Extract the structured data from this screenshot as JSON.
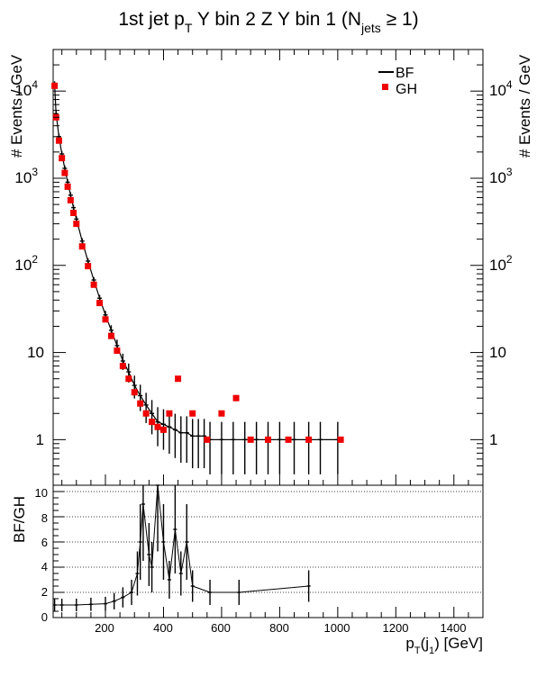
{
  "title": {
    "pre": "1st jet p",
    "sub_t": "T",
    "mid": " Y bin 2 Z Y bin 1 (N",
    "sub_jets": "jets",
    "post": " ≥ 1)"
  },
  "legend": {
    "items": [
      {
        "label": "BF",
        "color": "#000000",
        "marker": "line"
      },
      {
        "label": "GH",
        "color": "#ee0000",
        "marker": "square"
      }
    ]
  },
  "top_panel": {
    "ylabel": "# Events / GeV",
    "ylabel_right": "# Events / GeV",
    "ytick_labels": [
      "1",
      "10",
      "10",
      "10",
      "10"
    ],
    "ytick_exponents": [
      "",
      "",
      "2",
      "3",
      "4"
    ]
  },
  "bottom_panel": {
    "ylabel": "BF/GH",
    "ytick_labels": [
      "0",
      "2",
      "4",
      "6",
      "8",
      "10"
    ]
  },
  "xaxis": {
    "label_pre": "p",
    "label_sub_t": "T",
    "label_mid": "(j",
    "label_sub_1": "1",
    "label_post": ") [GeV]",
    "tick_labels": [
      "200",
      "400",
      "600",
      "800",
      "1000",
      "1200",
      "1400"
    ]
  },
  "chart_data": [
    {
      "type": "scatter",
      "title": "1st jet pT Y bin 2 Z Y bin 1 (Njets ≥ 1)",
      "xlabel": "pT(j1) [GeV]",
      "ylabel": "# Events / GeV",
      "yscale": "log",
      "xlim": [
        20,
        1500
      ],
      "ylim": [
        0.3,
        30000
      ],
      "legend_position": "top-right",
      "grid": false,
      "series": [
        {
          "name": "BF",
          "style": "histogram with error bars",
          "color": "#000000",
          "x": [
            25,
            30,
            40,
            50,
            60,
            70,
            80,
            90,
            100,
            120,
            140,
            160,
            180,
            200,
            220,
            240,
            260,
            280,
            300,
            320,
            340,
            360,
            380,
            400,
            420,
            440,
            460,
            480,
            500,
            520,
            540,
            560,
            600,
            640,
            680,
            720,
            760,
            800,
            850,
            900,
            940,
            1000
          ],
          "y": [
            12000,
            5500,
            3000,
            1900,
            1300,
            900,
            640,
            460,
            340,
            190,
            112,
            68,
            42,
            27,
            18,
            12,
            8,
            6,
            4.2,
            3.2,
            2.5,
            2,
            1.6,
            1.5,
            1.4,
            1.3,
            1.2,
            1.2,
            1.1,
            1.1,
            1.1,
            1,
            1,
            1,
            1,
            1,
            1,
            1,
            1,
            1,
            1,
            1
          ]
        },
        {
          "name": "GH",
          "style": "markers",
          "color": "#ee0000",
          "x": [
            25,
            30,
            40,
            50,
            60,
            70,
            80,
            90,
            100,
            120,
            140,
            160,
            180,
            200,
            220,
            240,
            260,
            280,
            300,
            320,
            340,
            360,
            380,
            400,
            420,
            450,
            500,
            550,
            600,
            650,
            700,
            760,
            830,
            900,
            1010
          ],
          "y": [
            11500,
            5000,
            2700,
            1700,
            1150,
            800,
            560,
            400,
            300,
            165,
            98,
            60,
            37,
            24,
            15.5,
            10.5,
            7,
            5,
            3.5,
            2.6,
            2,
            1.6,
            1.4,
            1.3,
            2,
            5,
            2,
            1,
            2,
            3,
            1,
            1,
            1,
            1,
            1
          ]
        }
      ]
    },
    {
      "type": "line",
      "title": "",
      "xlabel": "pT(j1) [GeV]",
      "ylabel": "BF/GH",
      "xlim": [
        20,
        1500
      ],
      "ylim": [
        0,
        10.5
      ],
      "grid": true,
      "grid_y_values": [
        2,
        4,
        6,
        8,
        10
      ],
      "series": [
        {
          "name": "BF/GH",
          "color": "#000000",
          "x": [
            25,
            50,
            100,
            150,
            200,
            230,
            260,
            290,
            310,
            320,
            330,
            350,
            360,
            380,
            400,
            420,
            440,
            460,
            480,
            500,
            560,
            660,
            900
          ],
          "y": [
            1.0,
            1.0,
            1.0,
            1.05,
            1.1,
            1.3,
            1.6,
            2.0,
            3.5,
            6.0,
            9.0,
            5.0,
            4.0,
            10.5,
            6.0,
            3.0,
            7.0,
            3.5,
            6.0,
            2.5,
            2.0,
            2.0,
            2.5
          ]
        }
      ]
    }
  ]
}
